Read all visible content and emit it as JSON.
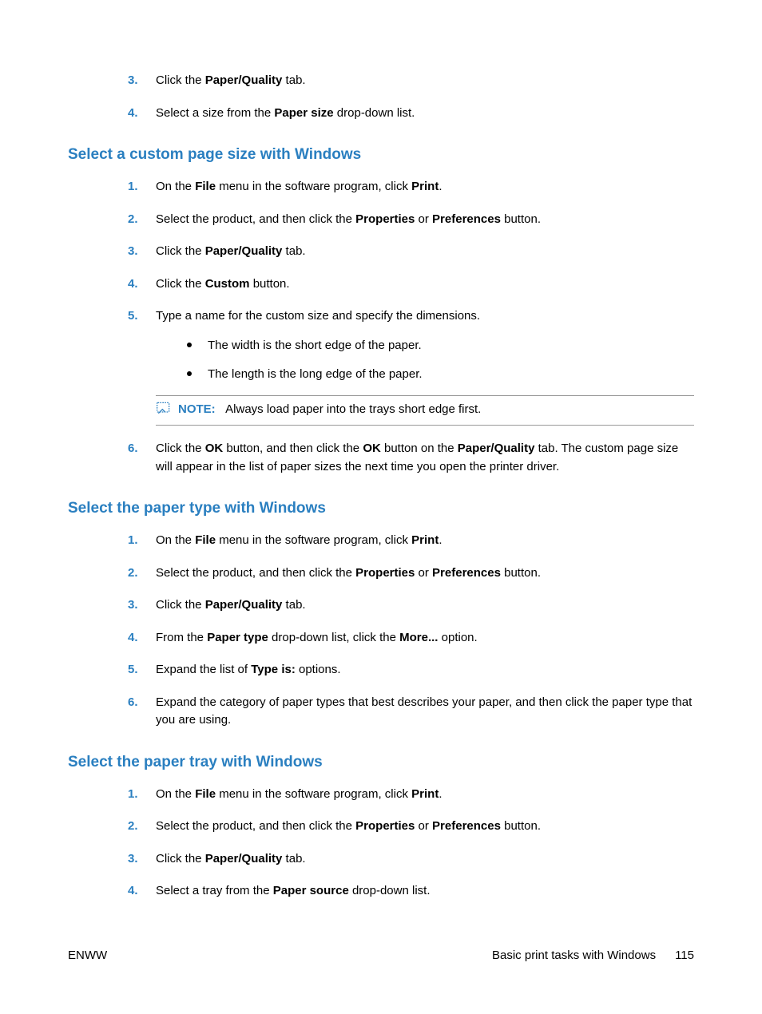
{
  "colors": {
    "accent": "#2a7fc0",
    "text": "#000000",
    "rule": "#999999"
  },
  "fonts": {
    "body_family": "Arial",
    "body_size_pt": 11,
    "heading_size_pt": 14
  },
  "continued_list": [
    {
      "n": "3.",
      "parts": [
        "Click the ",
        {
          "b": "Paper/Quality"
        },
        " tab."
      ]
    },
    {
      "n": "4.",
      "parts": [
        "Select a size from the ",
        {
          "b": "Paper size"
        },
        " drop-down list."
      ]
    }
  ],
  "sections": [
    {
      "title": "Select a custom page size with Windows",
      "items": [
        {
          "n": "1.",
          "parts": [
            "On the ",
            {
              "b": "File"
            },
            " menu in the software program, click ",
            {
              "b": "Print"
            },
            "."
          ]
        },
        {
          "n": "2.",
          "parts": [
            "Select the product, and then click the ",
            {
              "b": "Properties"
            },
            " or ",
            {
              "b": "Preferences"
            },
            " button."
          ]
        },
        {
          "n": "3.",
          "parts": [
            "Click the ",
            {
              "b": "Paper/Quality"
            },
            " tab."
          ]
        },
        {
          "n": "4.",
          "parts": [
            "Click the ",
            {
              "b": "Custom"
            },
            " button."
          ]
        },
        {
          "n": "5.",
          "parts": [
            "Type a name for the custom size and specify the dimensions."
          ],
          "bullets": [
            "The width is the short edge of the paper.",
            "The length is the long edge of the paper."
          ],
          "note": {
            "label": "NOTE:",
            "text": "Always load paper into the trays short edge first."
          }
        },
        {
          "n": "6.",
          "parts": [
            "Click the ",
            {
              "b": "OK"
            },
            " button, and then click the ",
            {
              "b": "OK"
            },
            " button on the ",
            {
              "b": "Paper/Quality"
            },
            " tab. The custom page size will appear in the list of paper sizes the next time you open the printer driver."
          ]
        }
      ]
    },
    {
      "title": "Select the paper type with Windows",
      "items": [
        {
          "n": "1.",
          "parts": [
            "On the ",
            {
              "b": "File"
            },
            " menu in the software program, click ",
            {
              "b": "Print"
            },
            "."
          ]
        },
        {
          "n": "2.",
          "parts": [
            "Select the product, and then click the ",
            {
              "b": "Properties"
            },
            " or ",
            {
              "b": "Preferences"
            },
            " button."
          ]
        },
        {
          "n": "3.",
          "parts": [
            "Click the ",
            {
              "b": "Paper/Quality"
            },
            " tab."
          ]
        },
        {
          "n": "4.",
          "parts": [
            "From the ",
            {
              "b": "Paper type"
            },
            " drop-down list, click the ",
            {
              "b": "More..."
            },
            " option."
          ]
        },
        {
          "n": "5.",
          "parts": [
            "Expand the list of ",
            {
              "b": "Type is:"
            },
            " options."
          ]
        },
        {
          "n": "6.",
          "parts": [
            "Expand the category of paper types that best describes your paper, and then click the paper type that you are using."
          ]
        }
      ]
    },
    {
      "title": "Select the paper tray with Windows",
      "items": [
        {
          "n": "1.",
          "parts": [
            "On the ",
            {
              "b": "File"
            },
            " menu in the software program, click ",
            {
              "b": "Print"
            },
            "."
          ]
        },
        {
          "n": "2.",
          "parts": [
            "Select the product, and then click the ",
            {
              "b": "Properties"
            },
            " or ",
            {
              "b": "Preferences"
            },
            " button."
          ]
        },
        {
          "n": "3.",
          "parts": [
            "Click the ",
            {
              "b": "Paper/Quality"
            },
            " tab."
          ]
        },
        {
          "n": "4.",
          "parts": [
            "Select a tray from the ",
            {
              "b": "Paper source"
            },
            " drop-down list."
          ]
        }
      ]
    }
  ],
  "footer": {
    "left": "ENWW",
    "center": "Basic print tasks with Windows",
    "page": "115"
  }
}
